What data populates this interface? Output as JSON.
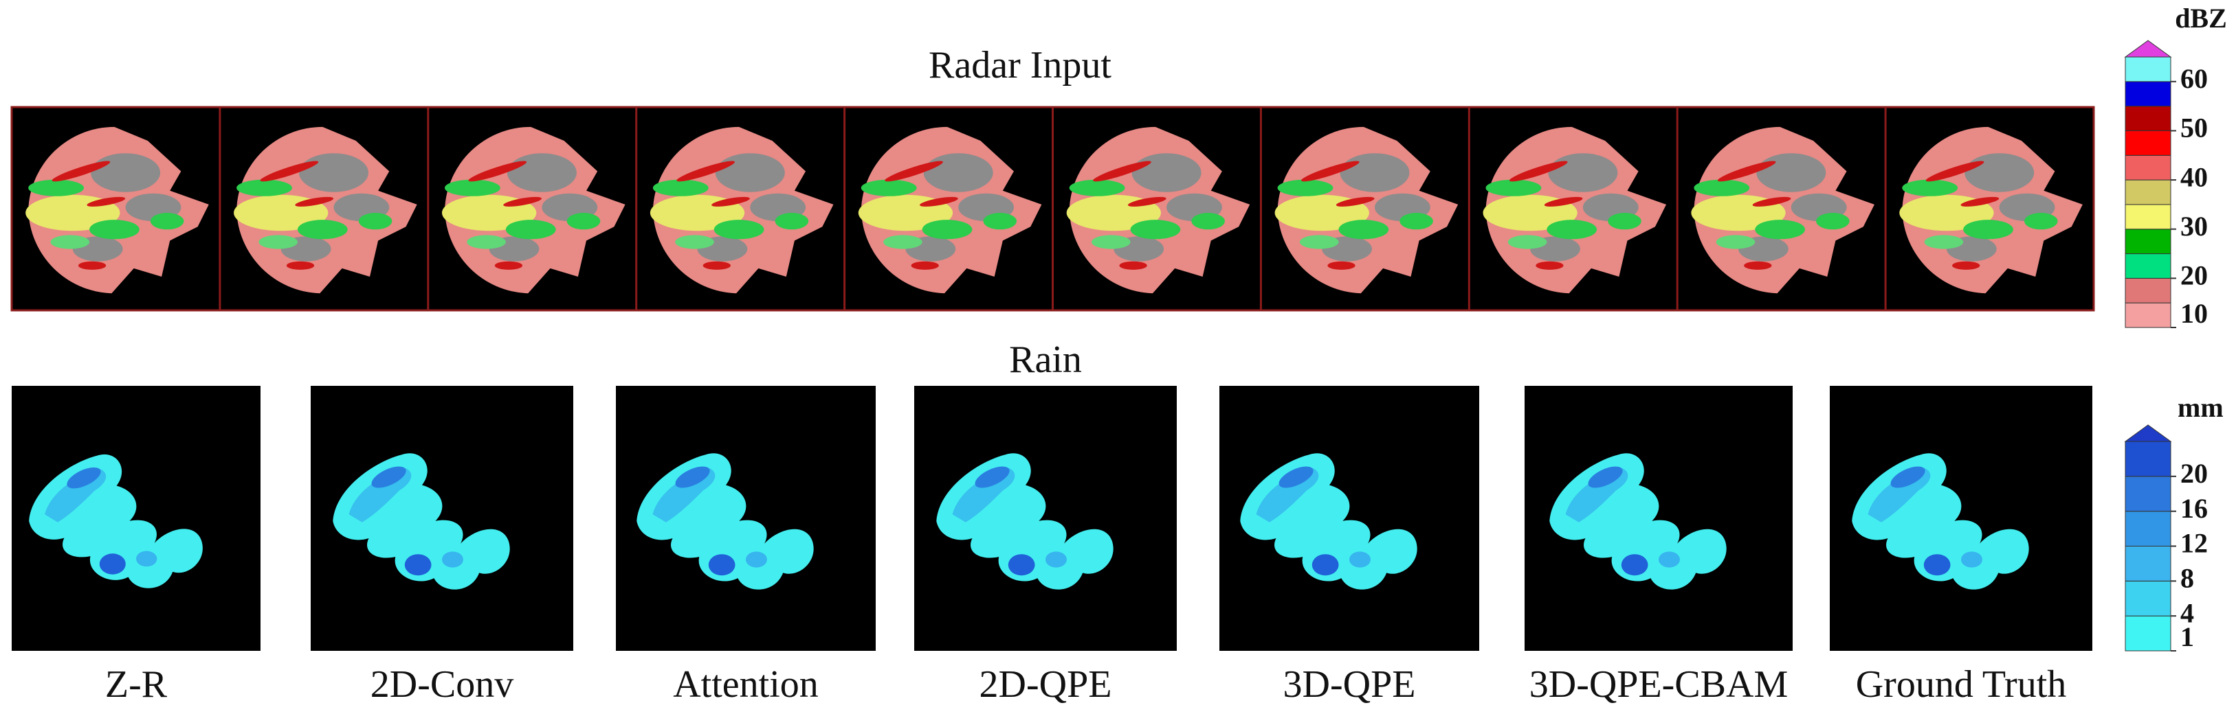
{
  "titles": {
    "radar": "Radar Input",
    "rain": "Rain"
  },
  "panels": [
    "Z-R",
    "2D-Conv",
    "Attention",
    "2D-QPE",
    "3D-QPE",
    "3D-QPE-CBAM",
    "Ground Truth"
  ],
  "colorbars": [
    {
      "unit": "dBZ",
      "colors": [
        "#f4a0a0",
        "#e07878",
        "#00e080",
        "#00b400",
        "#f5f56e",
        "#d2c864",
        "#f06060",
        "#ff0000",
        "#b40000",
        "#0000e0",
        "#78f5f5"
      ],
      "over_color": "#e040e0",
      "ticks": [
        10,
        20,
        30,
        40,
        50,
        60
      ]
    },
    {
      "unit": "mm",
      "colors": [
        "#40f4f4",
        "#3cd2f0",
        "#3cb4ee",
        "#3296e6",
        "#2d78dc",
        "#1e50d2"
      ],
      "over_color": "#1e3cc8",
      "ticks": [
        1,
        4,
        8,
        12,
        16,
        20
      ]
    }
  ]
}
